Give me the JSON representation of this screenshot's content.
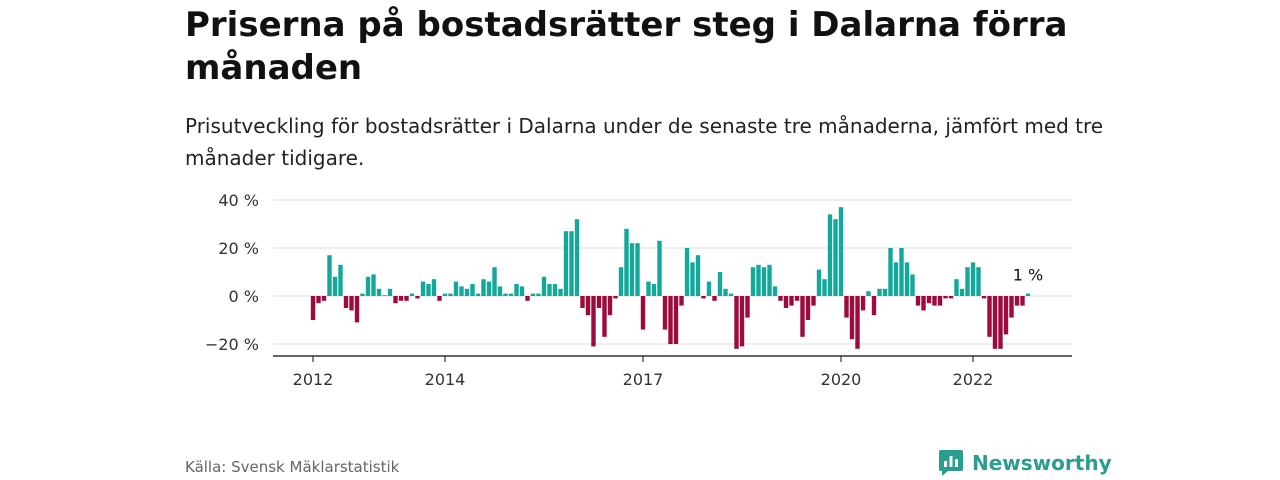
{
  "title": "Priserna på bostadsrätter steg i Dalarna förra månaden",
  "subtitle": "Prisutveckling för bostadsrätter i Dalarna under de senaste tre månaderna, jämfört med tre månader tidigare.",
  "source": "Källa: Svensk Mäklarstatistik",
  "brand": {
    "name": "Newsworthy",
    "icon": "newsworthy-logo-icon"
  },
  "colors": {
    "positive": "#14a89a",
    "negative": "#9c0a3e",
    "grid": "#dddddd",
    "axis": "#333333"
  },
  "chart_data": {
    "type": "bar",
    "ylim": [
      -25,
      43
    ],
    "y_ticks": [
      40,
      20,
      0,
      -20
    ],
    "y_tick_labels": [
      "40 %",
      "20 %",
      "0 %",
      "−20 %"
    ],
    "x_tick_labels": [
      {
        "label": "2012",
        "index": 0
      },
      {
        "label": "2014",
        "index": 24
      },
      {
        "label": "2017",
        "index": 60
      },
      {
        "label": "2020",
        "index": 96
      },
      {
        "label": "2022",
        "index": 120
      }
    ],
    "last_value_label": "1 %",
    "values": [
      -10,
      -3,
      -2,
      17,
      8,
      13,
      -5,
      -6,
      -11,
      1,
      8,
      9,
      3,
      0,
      3,
      -3,
      -2,
      -2,
      1,
      -1,
      6,
      5,
      7,
      -2,
      1,
      1,
      6,
      4,
      3,
      5,
      1,
      7,
      6,
      12,
      4,
      1,
      1,
      5,
      4,
      -2,
      1,
      1,
      8,
      5,
      5,
      3,
      27,
      27,
      32,
      -5,
      -8,
      -21,
      -5,
      -17,
      -8,
      -1,
      12,
      28,
      22,
      22,
      -14,
      6,
      5,
      23,
      -14,
      -20,
      -20,
      -4,
      20,
      14,
      17,
      -1,
      6,
      -2,
      10,
      3,
      1,
      -22,
      -21,
      -9,
      12,
      13,
      12,
      13,
      4,
      -2,
      -5,
      -4,
      -2,
      -17,
      -10,
      -4,
      11,
      7,
      34,
      32,
      37,
      -9,
      -18,
      -22,
      -6,
      2,
      -8,
      3,
      3,
      20,
      14,
      20,
      14,
      9,
      -4,
      -6,
      -3,
      -4,
      -4,
      -1,
      -1,
      7,
      3,
      12,
      14,
      12,
      -1,
      -17,
      -22,
      -22,
      -16,
      -9,
      -4,
      -4,
      1
    ]
  }
}
